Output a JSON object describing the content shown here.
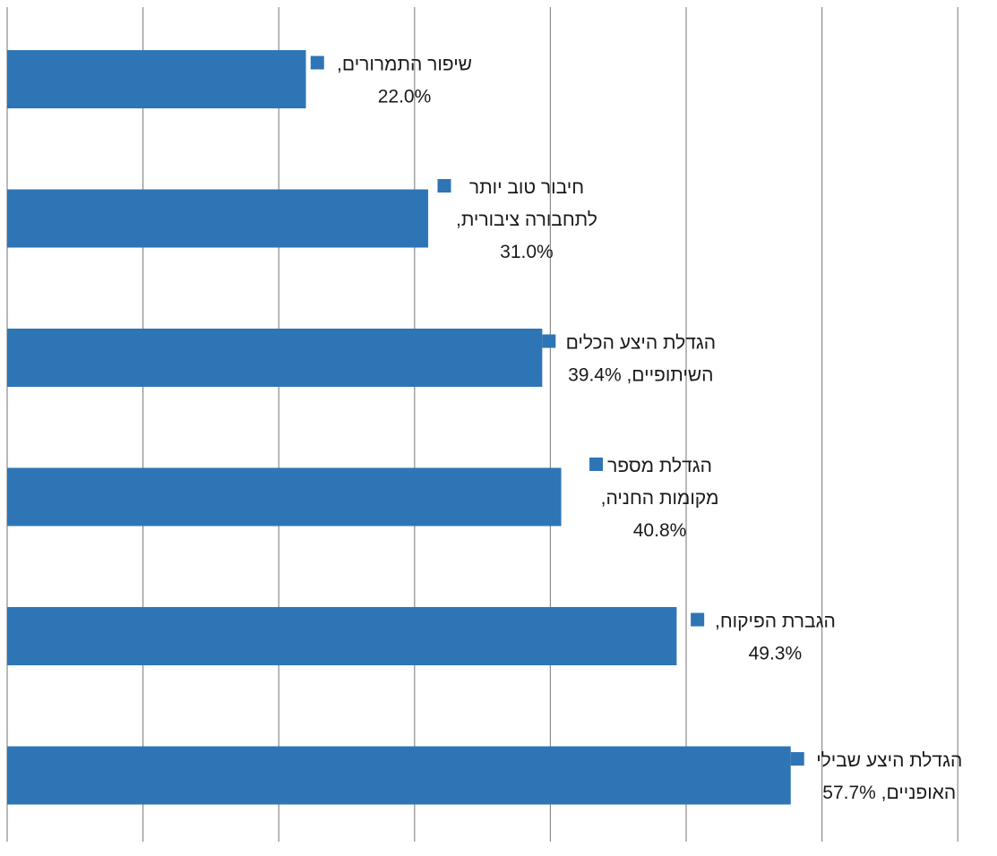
{
  "chart_data": {
    "type": "bar",
    "orientation": "horizontal",
    "bar_color": "#2E75B6",
    "grid": true,
    "xlim": [
      0,
      70
    ],
    "categories": [
      "שיפור התמרורים",
      "חיבור טוב יותר לתחבורה ציבורית",
      "הגדלת היצע הכלים השיתופיים",
      "הגדלת מספר מקומות החניה",
      "הגברת הפיקוח",
      "הגדלת היצע שבילי האופניים"
    ],
    "values": [
      22.0,
      31.0,
      39.4,
      40.8,
      49.3,
      57.7
    ],
    "data_labels": [
      [
        "שיפור התמרורים,",
        "22.0%"
      ],
      [
        "חיבור טוב יותר",
        "לתחבורה ציבורית,",
        "31.0%"
      ],
      [
        "הגדלת היצע הכלים",
        "השיתופיים, 39.4%"
      ],
      [
        "הגדלת מספר",
        "מקומות החניה,",
        "40.8%"
      ],
      [
        "הגברת הפיקוח,",
        "49.3%"
      ],
      [
        "הגדלת היצע שבילי",
        "האופניים, 57.7%"
      ]
    ]
  }
}
